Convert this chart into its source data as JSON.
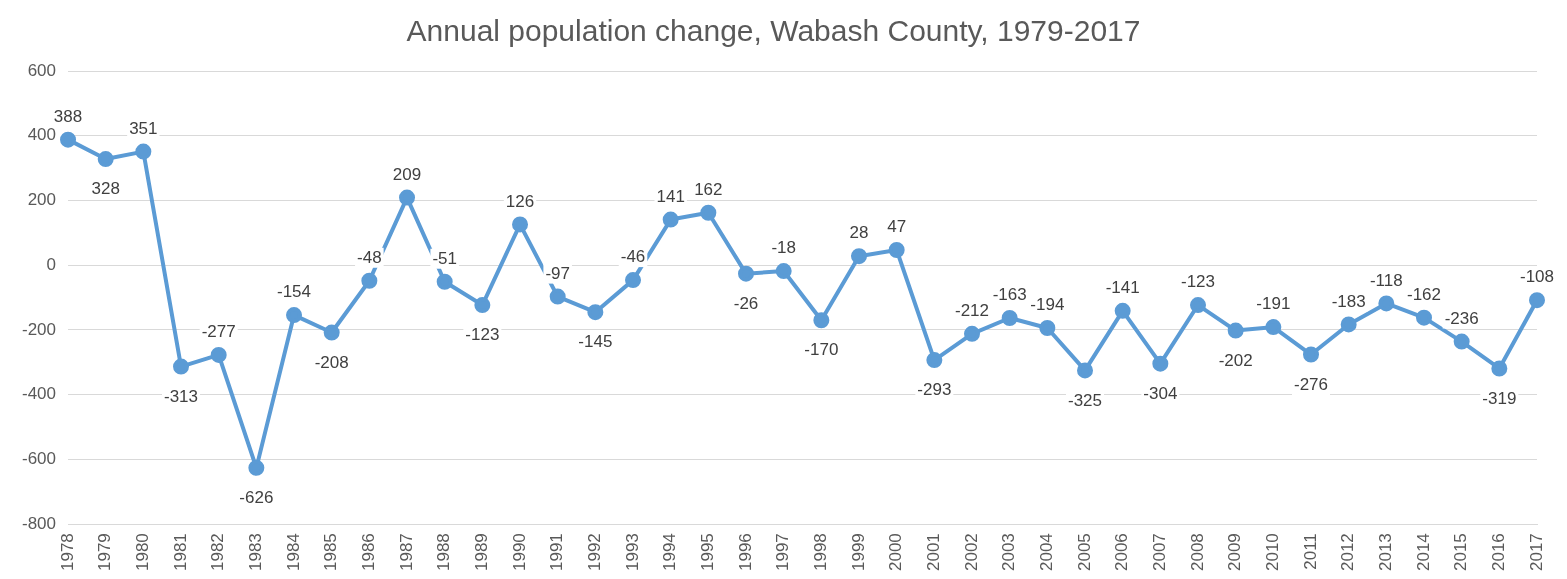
{
  "chart_data": {
    "type": "line",
    "title": "Annual population change, Wabash County, 1979-2017",
    "categories": [
      "1978",
      "1979",
      "1980",
      "1981",
      "1982",
      "1983",
      "1984",
      "1985",
      "1986",
      "1987",
      "1988",
      "1989",
      "1990",
      "1991",
      "1992",
      "1993",
      "1994",
      "1995",
      "1996",
      "1997",
      "1998",
      "1999",
      "2000",
      "2001",
      "2002",
      "2003",
      "2004",
      "2005",
      "2006",
      "2007",
      "2008",
      "2009",
      "2010",
      "2011",
      "2012",
      "2013",
      "2014",
      "2015",
      "2016",
      "2017"
    ],
    "series": [
      {
        "color": "#5b9bd5",
        "values": [
          388,
          328,
          351,
          -313,
          -277,
          -626,
          -154,
          -208,
          -48,
          209,
          -51,
          -123,
          126,
          -97,
          -145,
          -46,
          141,
          162,
          -26,
          -18,
          -170,
          28,
          47,
          -293,
          -212,
          -163,
          -194,
          -325,
          -141,
          -304,
          -123,
          -202,
          -191,
          -276,
          -183,
          -118,
          -162,
          -236,
          -319,
          -108
        ]
      }
    ],
    "ylim": [
      -800,
      600
    ],
    "yticks": [
      -800,
      -600,
      -400,
      -200,
      0,
      200,
      400,
      600
    ],
    "grid": "y",
    "legend": false,
    "marker": "circle",
    "line_style": "solid",
    "data_labels": true
  }
}
